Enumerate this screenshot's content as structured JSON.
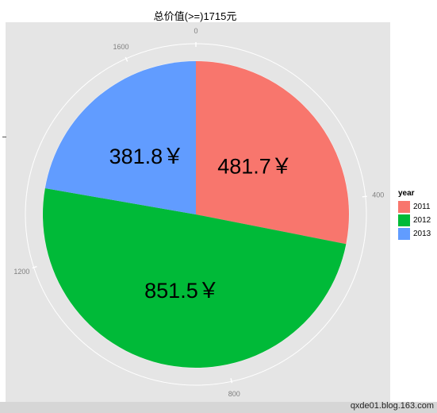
{
  "chart_data": {
    "type": "pie",
    "title": "总价值(>=)1715元",
    "categories": [
      "2011",
      "2012",
      "2013"
    ],
    "values": [
      481.7,
      851.5,
      381.8
    ],
    "labels": [
      "481.7￥",
      "851.5￥",
      "381.8￥"
    ],
    "colors": [
      "#F8766D",
      "#00BA38",
      "#619CFF"
    ],
    "axis_ticks": [
      "0",
      "400",
      "800",
      "1200",
      "1600"
    ],
    "axis_tick_values": [
      0,
      400,
      800,
      1200,
      1600
    ],
    "total": 1715,
    "legend_title": "year",
    "legend_position": "right"
  },
  "footer": {
    "watermark": "qxde01.blog.163.com"
  }
}
